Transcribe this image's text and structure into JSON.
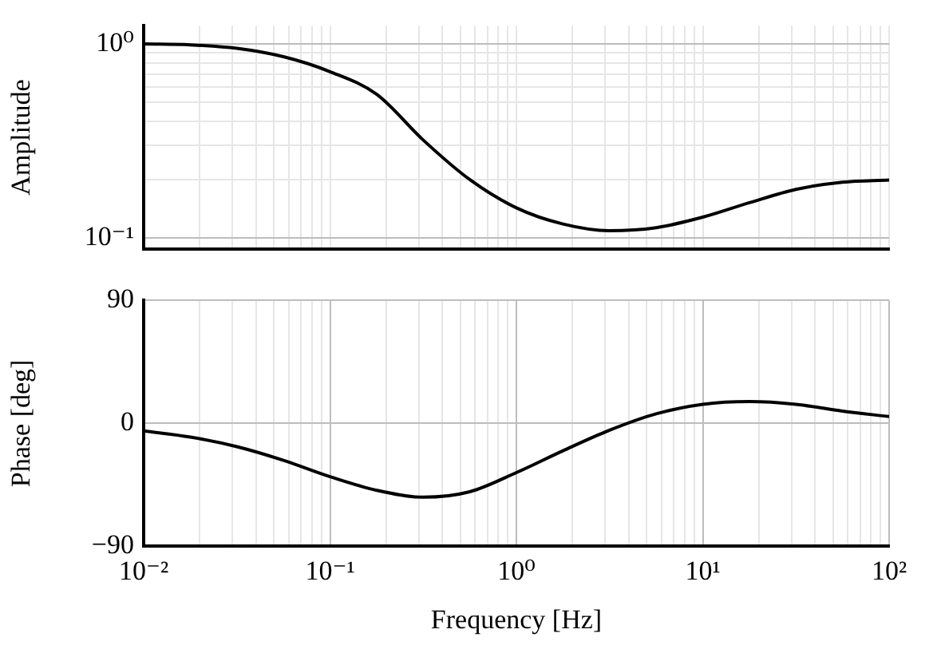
{
  "chart_data": [
    {
      "type": "line",
      "ylabel": "Amplitude",
      "log": "xy",
      "grid": true,
      "tick_labels": "y",
      "color": "#000000",
      "x": [
        0.01,
        0.0178,
        0.0316,
        0.0562,
        0.1,
        0.178,
        0.316,
        0.562,
        1,
        1.78,
        3.16,
        5.62,
        10,
        17.8,
        31.6,
        56.2,
        100
      ],
      "values": [
        1.0,
        0.99,
        0.95,
        0.86,
        0.72,
        0.55,
        0.32,
        0.2,
        0.143,
        0.118,
        0.109,
        0.113,
        0.128,
        0.152,
        0.178,
        0.194,
        0.199
      ],
      "xlim": [
        0.01,
        100
      ],
      "xticks": [
        {
          "value": 0.01,
          "label": null
        },
        {
          "value": 0.02,
          "label": null
        },
        {
          "value": 0.03,
          "label": null
        },
        {
          "value": 0.04,
          "label": null
        },
        {
          "value": 0.05,
          "label": null
        },
        {
          "value": 0.06,
          "label": null
        },
        {
          "value": 0.07,
          "label": null
        },
        {
          "value": 0.08,
          "label": null
        },
        {
          "value": 0.09,
          "label": null
        },
        {
          "value": 0.1,
          "label": null
        },
        {
          "value": 0.2,
          "label": null
        },
        {
          "value": 0.3,
          "label": null
        },
        {
          "value": 0.4,
          "label": null
        },
        {
          "value": 0.5,
          "label": null
        },
        {
          "value": 0.6,
          "label": null
        },
        {
          "value": 0.7,
          "label": null
        },
        {
          "value": 0.8,
          "label": null
        },
        {
          "value": 0.9,
          "label": null
        },
        {
          "value": 1,
          "label": null
        },
        {
          "value": 2,
          "label": null
        },
        {
          "value": 3,
          "label": null
        },
        {
          "value": 4,
          "label": null
        },
        {
          "value": 5,
          "label": null
        },
        {
          "value": 6,
          "label": null
        },
        {
          "value": 7,
          "label": null
        },
        {
          "value": 8,
          "label": null
        },
        {
          "value": 9,
          "label": null
        },
        {
          "value": 10,
          "label": null
        },
        {
          "value": 20,
          "label": null
        },
        {
          "value": 30,
          "label": null
        },
        {
          "value": 40,
          "label": null
        },
        {
          "value": 50,
          "label": null
        },
        {
          "value": 60,
          "label": null
        },
        {
          "value": 70,
          "label": null
        },
        {
          "value": 80,
          "label": null
        },
        {
          "value": 90,
          "label": null
        },
        {
          "value": 100,
          "label": null
        }
      ],
      "ylim": [
        0.088,
        1.24
      ],
      "yticks": [
        {
          "value": 0.1,
          "label": "10⁻¹"
        },
        {
          "value": 0.2,
          "label": null
        },
        {
          "value": 0.3,
          "label": null
        },
        {
          "value": 0.4,
          "label": null
        },
        {
          "value": 0.5,
          "label": null
        },
        {
          "value": 0.6,
          "label": null
        },
        {
          "value": 0.7,
          "label": null
        },
        {
          "value": 0.8,
          "label": null
        },
        {
          "value": 0.9,
          "label": null
        },
        {
          "value": 1,
          "label": "10⁰"
        }
      ]
    },
    {
      "type": "line",
      "xlabel": "Frequency [Hz]",
      "ylabel": "Phase [deg]",
      "log": "x",
      "grid": true,
      "color": "#000000",
      "x": [
        0.01,
        0.0178,
        0.0316,
        0.0562,
        0.1,
        0.178,
        0.316,
        0.562,
        1,
        1.78,
        3.16,
        5.62,
        10,
        17.8,
        31.6,
        56.2,
        100
      ],
      "values": [
        -5.5,
        -10,
        -17,
        -27,
        -39,
        -49,
        -54,
        -50,
        -36,
        -20,
        -5,
        7,
        14,
        16,
        14,
        9,
        5
      ],
      "xlim": [
        0.01,
        100
      ],
      "xticks": [
        {
          "value": 0.01,
          "label": "10⁻²"
        },
        {
          "value": 0.02,
          "label": null
        },
        {
          "value": 0.03,
          "label": null
        },
        {
          "value": 0.04,
          "label": null
        },
        {
          "value": 0.05,
          "label": null
        },
        {
          "value": 0.06,
          "label": null
        },
        {
          "value": 0.07,
          "label": null
        },
        {
          "value": 0.08,
          "label": null
        },
        {
          "value": 0.09,
          "label": null
        },
        {
          "value": 0.1,
          "label": "10⁻¹"
        },
        {
          "value": 0.2,
          "label": null
        },
        {
          "value": 0.3,
          "label": null
        },
        {
          "value": 0.4,
          "label": null
        },
        {
          "value": 0.5,
          "label": null
        },
        {
          "value": 0.6,
          "label": null
        },
        {
          "value": 0.7,
          "label": null
        },
        {
          "value": 0.8,
          "label": null
        },
        {
          "value": 0.9,
          "label": null
        },
        {
          "value": 1,
          "label": "10⁰"
        },
        {
          "value": 2,
          "label": null
        },
        {
          "value": 3,
          "label": null
        },
        {
          "value": 4,
          "label": null
        },
        {
          "value": 5,
          "label": null
        },
        {
          "value": 6,
          "label": null
        },
        {
          "value": 7,
          "label": null
        },
        {
          "value": 8,
          "label": null
        },
        {
          "value": 9,
          "label": null
        },
        {
          "value": 10,
          "label": "10¹"
        },
        {
          "value": 20,
          "label": null
        },
        {
          "value": 30,
          "label": null
        },
        {
          "value": 40,
          "label": null
        },
        {
          "value": 50,
          "label": null
        },
        {
          "value": 60,
          "label": null
        },
        {
          "value": 70,
          "label": null
        },
        {
          "value": 80,
          "label": null
        },
        {
          "value": 90,
          "label": null
        },
        {
          "value": 100,
          "label": "10²"
        }
      ],
      "ylim": [
        -90,
        90
      ],
      "yticks": [
        {
          "value": -90,
          "label": "−90"
        },
        0,
        90
      ]
    }
  ]
}
